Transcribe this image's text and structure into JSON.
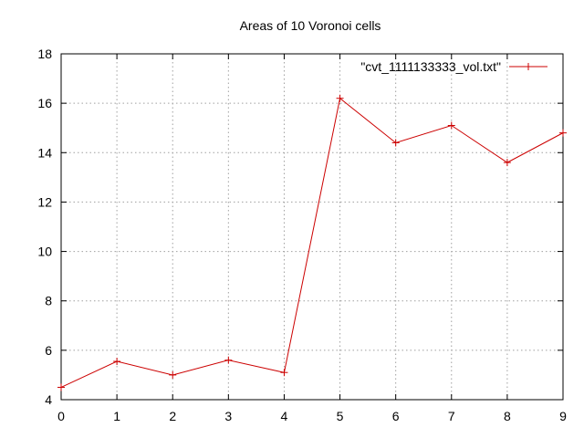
{
  "chart_data": {
    "type": "line",
    "title": "Areas of 10 Voronoi cells",
    "xlabel": "",
    "ylabel": "",
    "xlim": [
      0,
      9
    ],
    "ylim": [
      4,
      18
    ],
    "x_ticks": [
      0,
      1,
      2,
      3,
      4,
      5,
      6,
      7,
      8,
      9
    ],
    "y_ticks": [
      4,
      6,
      8,
      10,
      12,
      14,
      16,
      18
    ],
    "grid": true,
    "legend_position": "top-right",
    "series": [
      {
        "name": "\"cvt_1111133333_vol.txt\"",
        "color": "#cc0000",
        "marker": "plus",
        "x": [
          0,
          1,
          2,
          3,
          4,
          5,
          6,
          7,
          8,
          9
        ],
        "values": [
          4.5,
          5.55,
          5.0,
          5.6,
          5.1,
          16.2,
          14.4,
          15.1,
          13.6,
          14.8
        ]
      }
    ]
  }
}
